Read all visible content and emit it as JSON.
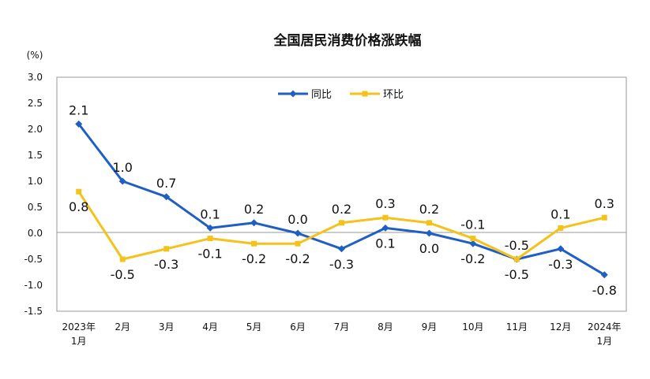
{
  "chart_data": {
    "type": "line",
    "title": "全国居民消费价格涨跌幅",
    "ylabel": "(%)",
    "xlabel": "",
    "ylim": [
      -1.5,
      3.0
    ],
    "yticks": [
      "3.0",
      "2.5",
      "2.0",
      "1.5",
      "1.0",
      "0.5",
      "0.0",
      "-0.5",
      "-1.0",
      "-1.5"
    ],
    "ytick_values": [
      3.0,
      2.5,
      2.0,
      1.5,
      1.0,
      0.5,
      0.0,
      -0.5,
      -1.0,
      -1.5
    ],
    "categories": [
      [
        "2023年",
        "1月"
      ],
      [
        "2月"
      ],
      [
        "3月"
      ],
      [
        "4月"
      ],
      [
        "5月"
      ],
      [
        "6月"
      ],
      [
        "7月"
      ],
      [
        "8月"
      ],
      [
        "9月"
      ],
      [
        "10月"
      ],
      [
        "11月"
      ],
      [
        "12月"
      ],
      [
        "2024年",
        "1月"
      ]
    ],
    "legend_position": "top-center",
    "grid": false,
    "series": [
      {
        "name": "同比",
        "color": "#1F5FC4",
        "marker": "diamond",
        "values": [
          2.1,
          1.0,
          0.7,
          0.1,
          0.2,
          0.0,
          -0.3,
          0.1,
          0.0,
          -0.2,
          -0.5,
          -0.3,
          -0.8
        ],
        "labels": [
          "2.1",
          "1.0",
          "0.7",
          "0.1",
          "0.2",
          "0.0",
          "-0.3",
          "0.1",
          "0.0",
          "-0.2",
          "-0.5",
          "-0.3",
          "-0.8"
        ]
      },
      {
        "name": "环比",
        "color": "#F5C21B",
        "marker": "square",
        "values": [
          0.8,
          -0.5,
          -0.3,
          -0.1,
          -0.2,
          -0.2,
          0.2,
          0.3,
          0.2,
          -0.1,
          -0.5,
          0.1,
          0.3
        ],
        "labels": [
          "0.8",
          "-0.5",
          "-0.3",
          "-0.1",
          "-0.2",
          "-0.2",
          "0.2",
          "0.3",
          "0.2",
          "-0.1",
          "-0.5",
          "0.1",
          "0.3"
        ]
      }
    ]
  }
}
